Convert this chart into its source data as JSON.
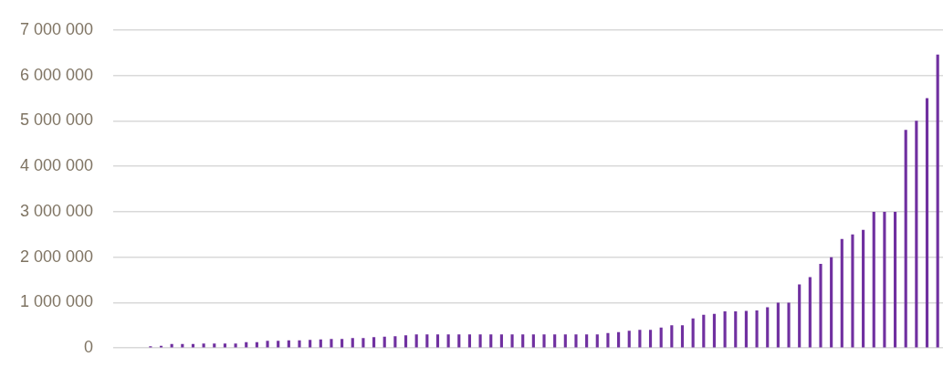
{
  "chart_data": {
    "type": "bar",
    "categories": [
      null,
      null,
      null,
      null,
      null,
      null,
      null,
      null,
      null,
      null,
      null,
      null,
      null,
      null,
      null,
      null,
      null,
      null,
      null,
      null,
      null,
      null,
      null,
      null,
      null,
      null,
      null,
      null,
      null,
      null,
      null,
      null,
      null,
      null,
      null,
      null,
      null,
      null,
      null,
      null,
      null,
      null,
      null,
      null,
      null,
      null,
      null,
      null,
      null,
      null,
      null,
      null,
      null,
      null,
      null,
      null,
      null,
      null,
      null,
      null,
      null,
      null,
      null,
      null,
      null,
      null,
      null,
      null,
      null,
      null,
      null,
      null,
      null,
      null,
      null,
      null,
      null,
      null
    ],
    "values": [
      0,
      0,
      0,
      40000,
      50000,
      90000,
      90000,
      90000,
      100000,
      100000,
      100000,
      100000,
      130000,
      130000,
      160000,
      160000,
      170000,
      170000,
      180000,
      190000,
      200000,
      200000,
      220000,
      220000,
      240000,
      250000,
      260000,
      280000,
      300000,
      300000,
      300000,
      300000,
      300000,
      300000,
      300000,
      300000,
      300000,
      300000,
      300000,
      300000,
      300000,
      300000,
      300000,
      300000,
      300000,
      300000,
      330000,
      350000,
      380000,
      400000,
      400000,
      450000,
      500000,
      500000,
      650000,
      730000,
      750000,
      810000,
      810000,
      820000,
      830000,
      900000,
      1000000,
      1000000,
      1400000,
      1560000,
      1850000,
      2000000,
      2400000,
      2500000,
      2600000,
      3000000,
      3000000,
      3000000,
      4800000,
      5000000,
      5500000,
      6460000
    ],
    "color": "#7030a0",
    "ylim": [
      0,
      7000000
    ],
    "yticks": [
      {
        "value": 0,
        "label": "0"
      },
      {
        "value": 1000000,
        "label": "1 000 000"
      },
      {
        "value": 2000000,
        "label": "2 000 000"
      },
      {
        "value": 3000000,
        "label": "3 000 000"
      },
      {
        "value": 4000000,
        "label": "4 000 000"
      },
      {
        "value": 5000000,
        "label": "5 000 000"
      },
      {
        "value": 6000000,
        "label": "6 000 000"
      },
      {
        "value": 7000000,
        "label": "7 000 000"
      }
    ],
    "grid": "y",
    "tick_labels": "y"
  }
}
